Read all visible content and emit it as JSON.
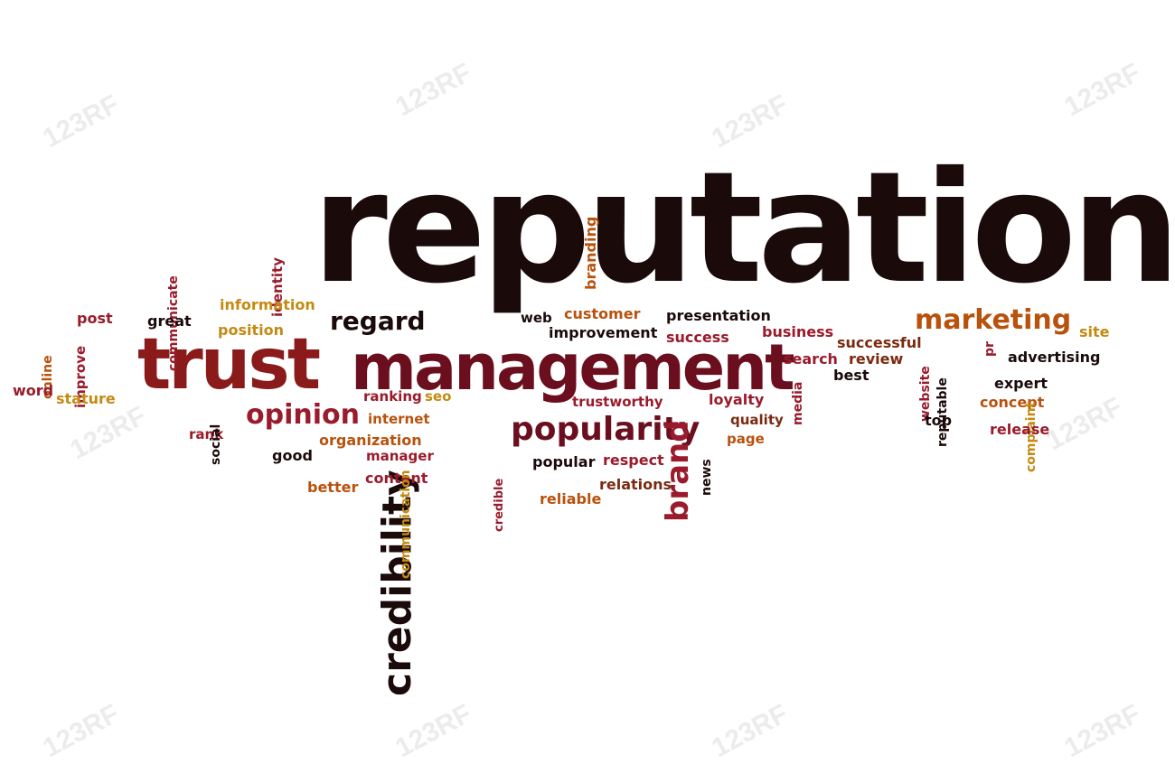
{
  "watermark": "123RF",
  "colors": {
    "dark": "#1a0a0a",
    "maroon": "#6b0f1f",
    "red": "#8b1a1a",
    "crimson": "#9a1b2b",
    "orange": "#b8520d",
    "gold": "#c48a12",
    "brown": "#7a2a10"
  },
  "words": [
    {
      "text": "reputation",
      "size": 170,
      "color": "dark"
    },
    {
      "text": "management",
      "size": 70,
      "color": "maroon"
    },
    {
      "text": "trust",
      "size": 78,
      "color": "red"
    },
    {
      "text": "credibility",
      "size": 44,
      "color": "dark"
    },
    {
      "text": "popularity",
      "size": 36,
      "color": "maroon"
    },
    {
      "text": "marketing",
      "size": 30,
      "color": "orange"
    },
    {
      "text": "opinion",
      "size": 30,
      "color": "crimson"
    },
    {
      "text": "regard",
      "size": 28,
      "color": "dark"
    },
    {
      "text": "brand",
      "size": 34,
      "color": "crimson"
    },
    {
      "text": "branding",
      "size": 16,
      "color": "orange"
    },
    {
      "text": "identity",
      "size": 15,
      "color": "crimson"
    },
    {
      "text": "communicate",
      "size": 14,
      "color": "crimson"
    },
    {
      "text": "information",
      "size": 16,
      "color": "gold"
    },
    {
      "text": "position",
      "size": 16,
      "color": "gold"
    },
    {
      "text": "post",
      "size": 16,
      "color": "crimson"
    },
    {
      "text": "great",
      "size": 16,
      "color": "dark"
    },
    {
      "text": "improve",
      "size": 15,
      "color": "crimson"
    },
    {
      "text": "online",
      "size": 14,
      "color": "orange"
    },
    {
      "text": "word",
      "size": 16,
      "color": "crimson"
    },
    {
      "text": "stature",
      "size": 16,
      "color": "gold"
    },
    {
      "text": "rank",
      "size": 15,
      "color": "crimson"
    },
    {
      "text": "social",
      "size": 14,
      "color": "dark"
    },
    {
      "text": "good",
      "size": 16,
      "color": "dark"
    },
    {
      "text": "better",
      "size": 16,
      "color": "orange"
    },
    {
      "text": "ranking",
      "size": 15,
      "color": "crimson"
    },
    {
      "text": "seo",
      "size": 15,
      "color": "gold"
    },
    {
      "text": "internet",
      "size": 15,
      "color": "orange"
    },
    {
      "text": "organization",
      "size": 16,
      "color": "orange"
    },
    {
      "text": "manager",
      "size": 15,
      "color": "crimson"
    },
    {
      "text": "content",
      "size": 16,
      "color": "crimson"
    },
    {
      "text": "communication",
      "size": 14,
      "color": "gold"
    },
    {
      "text": "credible",
      "size": 13,
      "color": "crimson"
    },
    {
      "text": "web",
      "size": 15,
      "color": "dark"
    },
    {
      "text": "customer",
      "size": 16,
      "color": "orange"
    },
    {
      "text": "improvement",
      "size": 16,
      "color": "dark"
    },
    {
      "text": "presentation",
      "size": 16,
      "color": "dark"
    },
    {
      "text": "success",
      "size": 16,
      "color": "crimson"
    },
    {
      "text": "business",
      "size": 16,
      "color": "crimson"
    },
    {
      "text": "trustworthy",
      "size": 15,
      "color": "crimson"
    },
    {
      "text": "loyalty",
      "size": 16,
      "color": "crimson"
    },
    {
      "text": "quality",
      "size": 15,
      "color": "brown"
    },
    {
      "text": "page",
      "size": 15,
      "color": "orange"
    },
    {
      "text": "news",
      "size": 14,
      "color": "dark"
    },
    {
      "text": "popular",
      "size": 16,
      "color": "dark"
    },
    {
      "text": "respect",
      "size": 16,
      "color": "crimson"
    },
    {
      "text": "relations",
      "size": 16,
      "color": "brown"
    },
    {
      "text": "reliable",
      "size": 16,
      "color": "orange"
    },
    {
      "text": "search",
      "size": 16,
      "color": "crimson"
    },
    {
      "text": "media",
      "size": 14,
      "color": "crimson"
    },
    {
      "text": "successful",
      "size": 16,
      "color": "brown"
    },
    {
      "text": "review",
      "size": 16,
      "color": "brown"
    },
    {
      "text": "best",
      "size": 16,
      "color": "dark"
    },
    {
      "text": "website",
      "size": 14,
      "color": "crimson"
    },
    {
      "text": "reputable",
      "size": 14,
      "color": "dark"
    },
    {
      "text": "pr",
      "size": 14,
      "color": "crimson"
    },
    {
      "text": "site",
      "size": 16,
      "color": "gold"
    },
    {
      "text": "advertising",
      "size": 16,
      "color": "dark"
    },
    {
      "text": "expert",
      "size": 16,
      "color": "dark"
    },
    {
      "text": "concept",
      "size": 16,
      "color": "orange"
    },
    {
      "text": "complaint",
      "size": 14,
      "color": "gold"
    },
    {
      "text": "release",
      "size": 16,
      "color": "crimson"
    },
    {
      "text": "top",
      "size": 16,
      "color": "dark"
    }
  ]
}
